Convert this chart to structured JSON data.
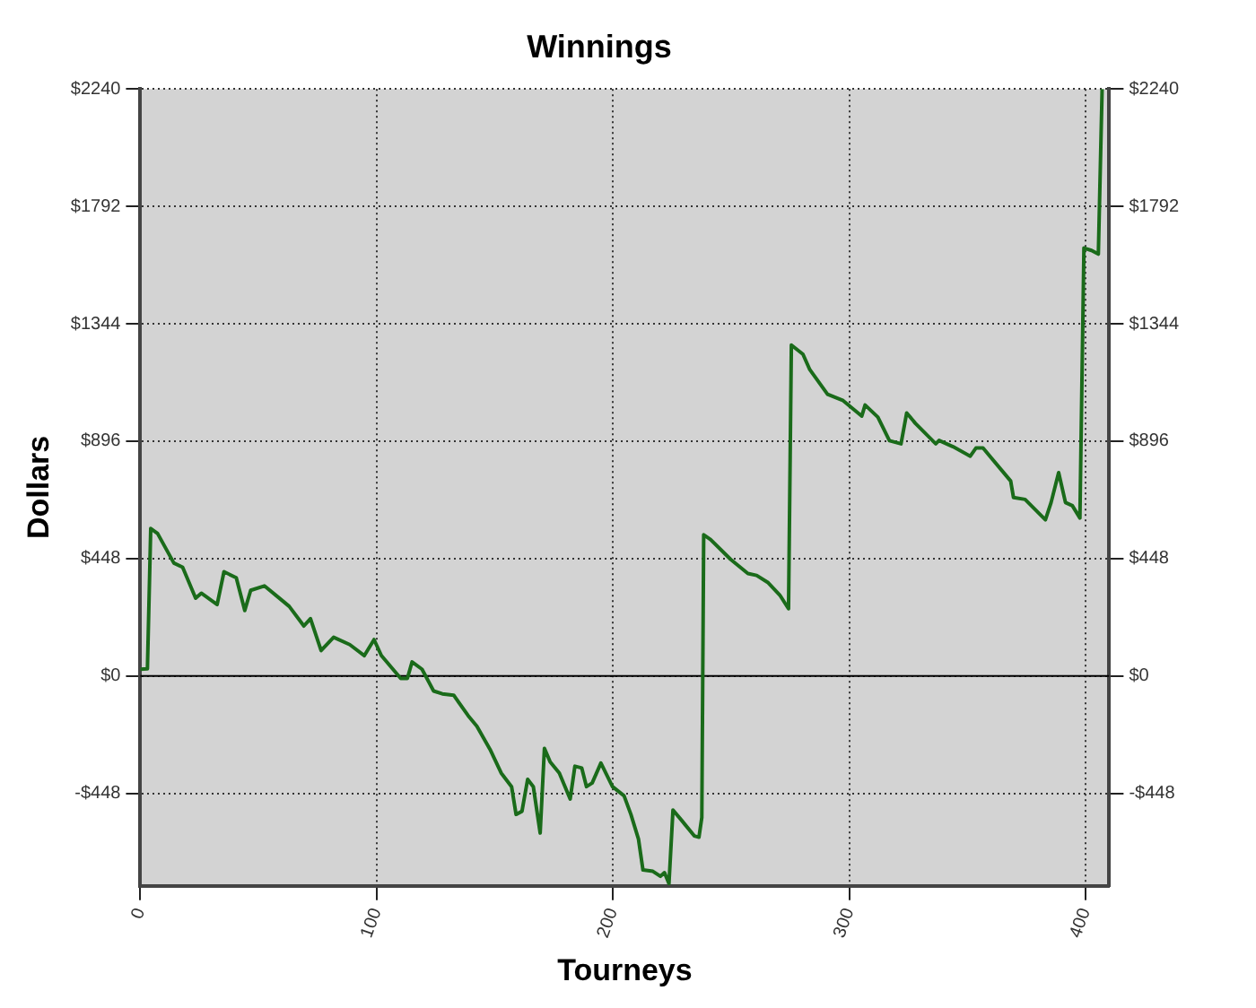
{
  "chart_data": {
    "type": "line",
    "title": "Winnings",
    "xlabel": "Tourneys",
    "ylabel": "Dollars",
    "x": [
      0,
      3,
      4.4,
      7.3,
      14.2,
      17.9,
      23.4,
      25.8,
      32.5,
      35.4,
      40.6,
      44.2,
      46.7,
      52.5,
      58.2,
      63,
      69.2,
      72,
      76.5,
      81.8,
      88.6,
      94.8,
      98.9,
      102,
      110.2,
      113,
      115,
      119.2,
      124.1,
      127.8,
      132.6,
      138.7,
      142.4,
      148,
      152.7,
      157.1,
      159,
      161.5,
      163.9,
      166.3,
      169.2,
      171,
      173.4,
      177.3,
      181.9,
      183.9,
      186.8,
      188.8,
      191.2,
      194.9,
      199.8,
      204.7,
      207.6,
      210.8,
      212.7,
      216.9,
      220.1,
      221.8,
      223.7,
      225.4,
      229.1,
      234.4,
      236.4,
      237.6,
      238.4,
      241.3,
      249.8,
      257.1,
      260.8,
      265.7,
      270.6,
      274.3,
      275.5,
      280.4,
      283.3,
      290.8,
      297.4,
      305.3,
      306.7,
      312.1,
      317,
      321.9,
      324.3,
      328,
      336.6,
      338,
      343.9,
      351.2,
      353.6,
      356.6,
      368.3,
      369.5,
      374.4,
      383,
      385.4,
      388.6,
      391.5,
      394.4,
      397.6,
      399.3,
      402.5,
      405.4,
      407
    ],
    "series": [
      {
        "color": "#1a6b1a",
        "values": [
          26,
          28,
          563,
          544,
          431,
          415,
          297,
          316,
          273,
          398,
          375,
          250,
          327,
          344,
          302,
          266,
          191,
          219,
          97,
          148,
          120,
          78,
          139,
          78,
          -9,
          -9,
          54,
          26,
          -57,
          -68,
          -73,
          -151,
          -191,
          -280,
          -370,
          -422,
          -528,
          -516,
          -394,
          -422,
          -599,
          -276,
          -327,
          -370,
          -469,
          -344,
          -351,
          -422,
          -408,
          -332,
          -422,
          -457,
          -528,
          -622,
          -740,
          -745,
          -764,
          -750,
          -792,
          -511,
          -551,
          -610,
          -615,
          -540,
          539,
          521,
          445,
          391,
          384,
          356,
          309,
          257,
          1263,
          1228,
          1169,
          1075,
          1051,
          992,
          1034,
          988,
          898,
          886,
          1004,
          964,
          886,
          899,
          875,
          839,
          870,
          870,
          744,
          681,
          674,
          596,
          662,
          776,
          662,
          650,
          603,
          1633,
          1624,
          1610,
          2240
        ]
      }
    ],
    "xlim": [
      0,
      410
    ],
    "xticks": [
      0,
      100,
      200,
      300,
      400
    ],
    "ylim": [
      -800,
      2240
    ],
    "yticks": [
      {
        "value": -448,
        "label": "-$448"
      },
      {
        "value": 0,
        "label": "$0"
      },
      {
        "value": 448,
        "label": "$448"
      },
      {
        "value": 896,
        "label": "$896"
      },
      {
        "value": 1344,
        "label": "$1344"
      },
      {
        "value": 1792,
        "label": "$1792"
      },
      {
        "value": 2240,
        "label": "$2240"
      }
    ],
    "y2lim": [
      -800,
      2240
    ],
    "y2ticks": [
      {
        "value": -448,
        "label": "-$448"
      },
      {
        "value": 0,
        "label": "$0"
      },
      {
        "value": 448,
        "label": "$448"
      },
      {
        "value": 896,
        "label": "$896"
      },
      {
        "value": 1344,
        "label": "$1344"
      },
      {
        "value": 1792,
        "label": "$1792"
      },
      {
        "value": 2240,
        "label": "$2240"
      }
    ],
    "ref_lines": [
      {
        "axis": "y",
        "value": 0,
        "color": "#000000",
        "line_style": "solid"
      }
    ],
    "grid": true,
    "legend": false,
    "marker": "none",
    "line_style": "solid"
  }
}
